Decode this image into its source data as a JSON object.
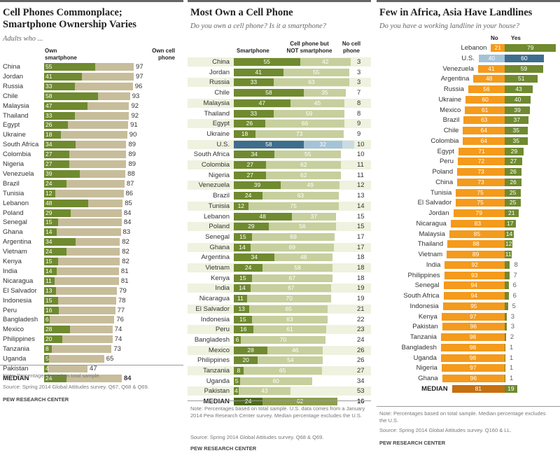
{
  "colors": {
    "smartphone": "#6f8a2f",
    "phone_nonsmart": "#c6cf9d",
    "own_cell": "#c7bd9a",
    "us_smart": "#3e6d8e",
    "us_nonsmart": "#a3c3d9",
    "us_none": "#c9dbe6",
    "landline_no": "#f49a1c",
    "landline_yes_bar": "#6f8a2f",
    "us_no": "#a3c3d9",
    "us_yes": "#3e6d8e",
    "median_smart": "#4d6b1d",
    "median_nonsmart": "#8da04a",
    "median_no": "#c6700f",
    "median_yes": "#6f8a2f"
  },
  "chart_data": [
    {
      "type": "bar",
      "title": "Cell Phones Commonplace; Smartphone Ownership Varies",
      "subtitle": "Adults who ...",
      "header_smartphone": "Own smartphone",
      "header_cell": "Own cell phone",
      "categories": [
        "China",
        "Jordan",
        "Russia",
        "Chile",
        "Malaysia",
        "Thailand",
        "Egypt",
        "Ukraine",
        "South Africa",
        "Colombia",
        "Nigeria",
        "Venezuela",
        "Brazil",
        "Tunisia",
        "Lebanon",
        "Poland",
        "Senegal",
        "Ghana",
        "Argentina",
        "Vietnam",
        "Kenya",
        "India",
        "Nicaragua",
        "El Salvador",
        "Indonesia",
        "Peru",
        "Bangladesh",
        "Mexico",
        "Philippines",
        "Tanzania",
        "Uganda",
        "Pakistan",
        "MEDIAN"
      ],
      "series": [
        {
          "name": "Own smartphone",
          "values": [
            55,
            41,
            33,
            58,
            47,
            33,
            26,
            18,
            34,
            27,
            27,
            39,
            24,
            12,
            48,
            29,
            15,
            14,
            34,
            24,
            15,
            14,
            11,
            13,
            15,
            16,
            6,
            28,
            20,
            8,
            5,
            4,
            24
          ]
        },
        {
          "name": "Own cell phone",
          "values": [
            97,
            97,
            96,
            93,
            92,
            92,
            91,
            90,
            89,
            89,
            89,
            88,
            87,
            86,
            85,
            84,
            84,
            83,
            82,
            82,
            82,
            81,
            81,
            79,
            78,
            77,
            76,
            74,
            74,
            73,
            65,
            47,
            84
          ]
        }
      ],
      "notes": "Note: Percentages based on total sample.",
      "source": "Source: Spring 2014 Global Attitudes survey. Q67, Q68 & Q69.",
      "brand": "PEW RESEARCH CENTER"
    },
    {
      "type": "bar",
      "title": "Most Own a Cell Phone",
      "subtitle": "Do you own a cell phone? Is it a smartphone?",
      "header_smartphone": "Smartphone",
      "header_nonsmart": "Cell phone but NOT smartphone",
      "header_none": "No cell phone",
      "categories": [
        "China",
        "Jordan",
        "Russia",
        "Chile",
        "Malaysia",
        "Thailand",
        "Egypt",
        "Ukraine",
        "U.S.",
        "South Africa",
        "Colombia",
        "Nigeria",
        "Venezuela",
        "Brazil",
        "Tunisia",
        "Lebanon",
        "Poland",
        "Senegal",
        "Ghana",
        "Argentina",
        "Vietnam",
        "Kenya",
        "India",
        "Nicaragua",
        "El Salvador",
        "Indonesia",
        "Peru",
        "Bangladesh",
        "Mexico",
        "Philippines",
        "Tanzania",
        "Uganda",
        "Pakistan",
        "MEDIAN"
      ],
      "series": [
        {
          "name": "Smartphone",
          "values": [
            55,
            41,
            33,
            58,
            47,
            33,
            26,
            18,
            58,
            34,
            27,
            27,
            39,
            24,
            12,
            48,
            29,
            15,
            14,
            34,
            24,
            15,
            14,
            11,
            13,
            15,
            16,
            6,
            28,
            20,
            8,
            5,
            4,
            24
          ]
        },
        {
          "name": "Cell phone but NOT smartphone",
          "values": [
            42,
            55,
            63,
            35,
            45,
            59,
            66,
            73,
            32,
            55,
            62,
            62,
            49,
            63,
            75,
            37,
            56,
            69,
            69,
            48,
            58,
            67,
            67,
            70,
            65,
            63,
            61,
            70,
            46,
            54,
            65,
            60,
            43,
            62
          ]
        },
        {
          "name": "No cell phone",
          "values": [
            3,
            3,
            3,
            7,
            8,
            8,
            9,
            9,
            10,
            10,
            11,
            11,
            12,
            13,
            14,
            15,
            15,
            17,
            17,
            18,
            18,
            18,
            19,
            19,
            21,
            22,
            23,
            24,
            26,
            26,
            27,
            34,
            53,
            16
          ]
        }
      ],
      "notes": "Note: Percentages based on total sample. U.S. data comes from a January 2014 Pew Research Center survey. Median percentage excludes the U.S.",
      "source": "Source: Spring 2014 Global Attitudes survey. Q68 & Q69.",
      "brand": "PEW RESEARCH CENTER"
    },
    {
      "type": "bar",
      "title": "Few in Africa, Asia Have Landlines",
      "subtitle": "Do you have a working landline in your house?",
      "header_no": "No",
      "header_yes": "Yes",
      "categories": [
        "Lebanon",
        "U.S.",
        "Venezuela",
        "Argentina",
        "Russia",
        "Ukraine",
        "Mexico",
        "Brazil",
        "Chile",
        "Colombia",
        "Egypt",
        "Peru",
        "Poland",
        "China",
        "Tunisia",
        "El Salvador",
        "Jordan",
        "Nicaragua",
        "Malaysia",
        "Thailand",
        "Vietnam",
        "India",
        "Philippines",
        "Senegal",
        "South Africa",
        "Indonesia",
        "Kenya",
        "Pakistan",
        "Tanzania",
        "Bangladesh",
        "Uganda",
        "Nigeria",
        "Ghana",
        "MEDIAN"
      ],
      "series": [
        {
          "name": "No",
          "values": [
            21,
            40,
            41,
            48,
            56,
            60,
            61,
            63,
            64,
            64,
            71,
            72,
            73,
            73,
            75,
            75,
            79,
            83,
            85,
            88,
            89,
            92,
            93,
            94,
            94,
            95,
            97,
            96,
            98,
            98,
            98,
            97,
            96,
            81
          ]
        },
        {
          "name": "Yes",
          "values": [
            79,
            60,
            59,
            51,
            43,
            40,
            39,
            37,
            35,
            35,
            29,
            27,
            26,
            26,
            25,
            25,
            21,
            17,
            14,
            12,
            11,
            8,
            7,
            6,
            6,
            5,
            3,
            3,
            2,
            1,
            1,
            1,
            1,
            19
          ]
        }
      ],
      "notes": "Note: Percentages based on total sample. Median percentage excludes the U.S.",
      "source": "Source: Spring 2014 Global Attitudes survey. Q160 & LL.",
      "brand": "PEW RESEARCH CENTER"
    }
  ]
}
